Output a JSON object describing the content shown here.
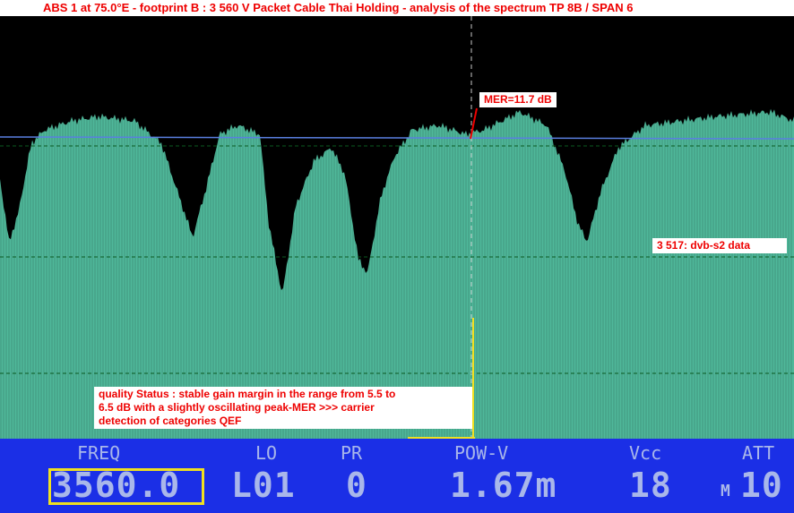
{
  "title": "ABS 1 at 75.0°E - footprint B : 3 560 V Packet Cable Thai Holding - analysis of the spectrum TP 8B / SPAN 6",
  "annotations": {
    "mer": "MER=11.7 dB",
    "carrier": "3 517: dvb-s2 data",
    "quality": [
      "quality Status : stable gain margin in the range from 5.5 to",
      "6.5 dB with a   slightly oscillating peak-MER >>> carrier",
      "detection of   categories QEF"
    ]
  },
  "colors": {
    "spectrum": "#4fb89a",
    "panel": "#1b2fe6",
    "annotation_text": "#e00000",
    "cursor": "#f0e020"
  },
  "status_bar": {
    "freq": {
      "label": "FREQ",
      "value": "3560.0"
    },
    "lo": {
      "label": "LO",
      "value": "L01"
    },
    "pr": {
      "label": "PR",
      "value": "0"
    },
    "pow": {
      "label": "POW-V",
      "value": "1.67m"
    },
    "vcc": {
      "label": "Vcc",
      "value": "18"
    },
    "att": {
      "label": "ATT",
      "prefix": "M",
      "value": "10"
    }
  }
}
